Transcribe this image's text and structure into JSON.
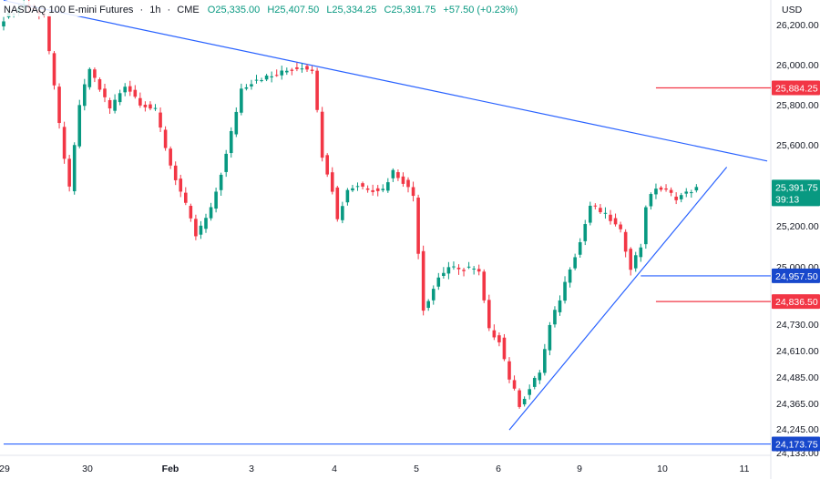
{
  "header": {
    "symbol": "NASDAQ 100 E-mini Futures",
    "interval": "1h",
    "exchange": "CME",
    "open": "O25,335.00",
    "high": "H25,407.50",
    "low": "L25,334.25",
    "close": "C25,391.75",
    "change": "+57.50 (+0.23%)",
    "currency": "USD"
  },
  "colors": {
    "up": "#089981",
    "down": "#f23645",
    "trendline": "#2962ff",
    "support_tag": "#1848cc",
    "resistance": "#f23645",
    "axis_text": "#131722"
  },
  "chart_data": {
    "type": "candlestick",
    "y_ticks": [
      "26,200.00",
      "26,000.00",
      "25,800.00",
      "25,600.00",
      "25,200.00",
      "25,000.00",
      "24,730.00",
      "24,610.00",
      "24,485.00",
      "24,365.00",
      "24,245.00",
      "24,133.00"
    ],
    "x_ticks": [
      "29",
      "30",
      "Feb",
      "3",
      "4",
      "5",
      "6",
      "9",
      "10",
      "11"
    ],
    "price_labels": [
      {
        "text": "25,884.25",
        "price": 25884.25,
        "color": "#f23645"
      },
      {
        "text": "24,957.50",
        "price": 24957.5,
        "color": "#1848cc"
      },
      {
        "text": "24,836.50",
        "price": 24836.5,
        "color": "#f23645"
      },
      {
        "text": "24,173.75",
        "price": 24173.75,
        "color": "#1848cc"
      }
    ],
    "current": {
      "price": 25391.75,
      "text": "25,391.75",
      "countdown": "39:13"
    },
    "anchors": [
      {
        "bar": 0,
        "price": 26230
      },
      {
        "bar": 4,
        "price": 26300
      },
      {
        "bar": 8,
        "price": 26250
      },
      {
        "bar": 11,
        "price": 25700
      },
      {
        "bar": 13,
        "price": 25380
      },
      {
        "bar": 15,
        "price": 25800
      },
      {
        "bar": 17,
        "price": 25980
      },
      {
        "bar": 21,
        "price": 25780
      },
      {
        "bar": 24,
        "price": 25900
      },
      {
        "bar": 27,
        "price": 25810
      },
      {
        "bar": 30,
        "price": 25770
      },
      {
        "bar": 33,
        "price": 25500
      },
      {
        "bar": 36,
        "price": 25300
      },
      {
        "bar": 38,
        "price": 25150
      },
      {
        "bar": 41,
        "price": 25280
      },
      {
        "bar": 44,
        "price": 25550
      },
      {
        "bar": 47,
        "price": 25880
      },
      {
        "bar": 50,
        "price": 25930
      },
      {
        "bar": 53,
        "price": 25940
      },
      {
        "bar": 56,
        "price": 25970
      },
      {
        "bar": 59,
        "price": 25990
      },
      {
        "bar": 61,
        "price": 25980
      },
      {
        "bar": 63,
        "price": 25550
      },
      {
        "bar": 65,
        "price": 25380
      },
      {
        "bar": 66,
        "price": 25230
      },
      {
        "bar": 68,
        "price": 25380
      },
      {
        "bar": 70,
        "price": 25400
      },
      {
        "bar": 73,
        "price": 25380
      },
      {
        "bar": 75,
        "price": 25380
      },
      {
        "bar": 77,
        "price": 25470
      },
      {
        "bar": 79,
        "price": 25420
      },
      {
        "bar": 81,
        "price": 25350
      },
      {
        "bar": 83,
        "price": 24800
      },
      {
        "bar": 86,
        "price": 24950
      },
      {
        "bar": 88,
        "price": 25000
      },
      {
        "bar": 90,
        "price": 24980
      },
      {
        "bar": 92,
        "price": 25000
      },
      {
        "bar": 94,
        "price": 24970
      },
      {
        "bar": 96,
        "price": 24700
      },
      {
        "bar": 98,
        "price": 24660
      },
      {
        "bar": 100,
        "price": 24480
      },
      {
        "bar": 102,
        "price": 24360
      },
      {
        "bar": 104,
        "price": 24430
      },
      {
        "bar": 106,
        "price": 24510
      },
      {
        "bar": 108,
        "price": 24720
      },
      {
        "bar": 110,
        "price": 24850
      },
      {
        "bar": 112,
        "price": 25000
      },
      {
        "bar": 114,
        "price": 25120
      },
      {
        "bar": 116,
        "price": 25300
      },
      {
        "bar": 118,
        "price": 25270
      },
      {
        "bar": 120,
        "price": 25230
      },
      {
        "bar": 122,
        "price": 25170
      },
      {
        "bar": 124,
        "price": 25000
      },
      {
        "bar": 126,
        "price": 25100
      },
      {
        "bar": 127,
        "price": 25300
      },
      {
        "bar": 129,
        "price": 25390
      },
      {
        "bar": 131,
        "price": 25370
      },
      {
        "bar": 133,
        "price": 25340
      },
      {
        "bar": 135,
        "price": 25360
      },
      {
        "bar": 137,
        "price": 25391.75
      }
    ],
    "trendlines": [
      {
        "name": "descending-resistance",
        "from": {
          "bar": 0,
          "price": 26320
        },
        "to": {
          "bar": 151,
          "price": 25520
        }
      },
      {
        "name": "ascending-support",
        "from": {
          "bar": 100,
          "price": 24240
        },
        "to": {
          "bar": 143,
          "price": 25490
        }
      }
    ],
    "horizontal_segments": [
      {
        "name": "resistance-line-25884",
        "price": 25884.25,
        "from_bar": 129,
        "color": "#f23645"
      },
      {
        "name": "support-line-24957",
        "price": 24957.5,
        "from_bar": 126,
        "color": "#2962ff"
      },
      {
        "name": "resistance-line-24836",
        "price": 24836.5,
        "from_bar": 129,
        "color": "#f23645"
      },
      {
        "name": "support-line-24173",
        "price": 24173.75,
        "from_bar": 0,
        "color": "#2962ff"
      }
    ]
  }
}
